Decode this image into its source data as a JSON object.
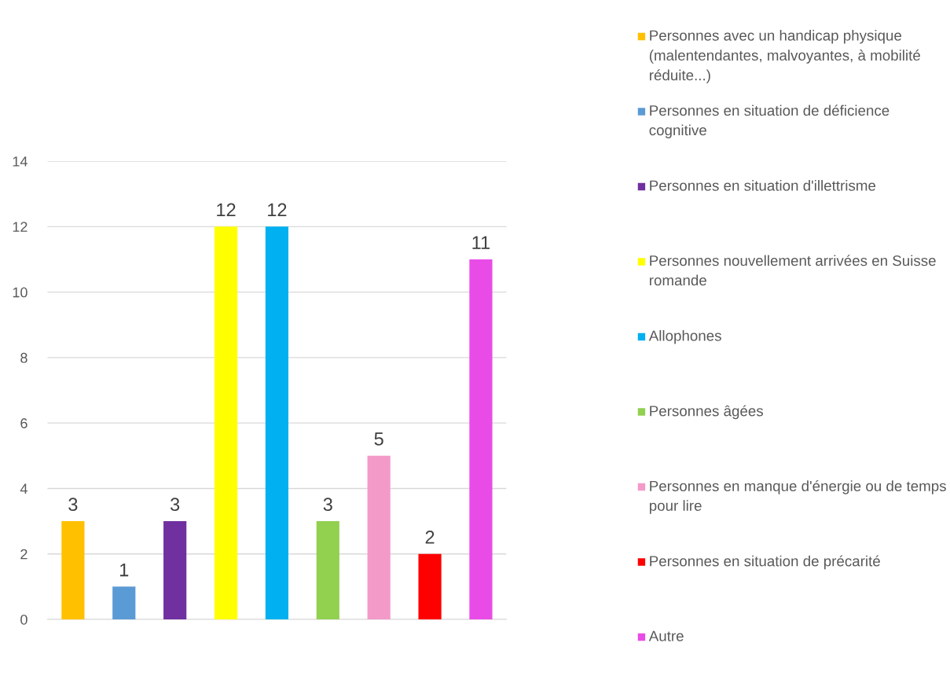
{
  "chart_data": {
    "type": "bar",
    "categories": [
      null
    ],
    "series": [
      {
        "name": "Personnes avec un handicap physique (malentendantes, malvoyantes, à mobilité réduite...)",
        "color": "#ffc000",
        "values": [
          3
        ]
      },
      {
        "name": "Personnes en situation de déficience cognitive",
        "color": "#5b9bd5",
        "values": [
          1
        ]
      },
      {
        "name": "Personnes en situation d'illettrisme",
        "color": "#7030a0",
        "values": [
          3
        ]
      },
      {
        "name": "Personnes nouvellement arrivées en Suisse romande",
        "color": "#ffff00",
        "values": [
          12
        ]
      },
      {
        "name": "Allophones",
        "color": "#00b0f0",
        "values": [
          12
        ]
      },
      {
        "name": "Personnes âgées",
        "color": "#92d050",
        "values": [
          3
        ]
      },
      {
        "name": "Personnes en manque d'énergie ou de temps pour lire",
        "color": "#f49ac9",
        "values": [
          5
        ]
      },
      {
        "name": "Personnes en situation de précarité",
        "color": "#ff0000",
        "values": [
          2
        ]
      },
      {
        "name": "Autre",
        "color": "#e94ce6",
        "values": [
          11
        ]
      }
    ],
    "ylim": [
      0,
      14
    ],
    "yticks": [
      0,
      2,
      4,
      6,
      8,
      10,
      12,
      14
    ],
    "grid": "y",
    "legend": "right",
    "data_labels": true
  }
}
